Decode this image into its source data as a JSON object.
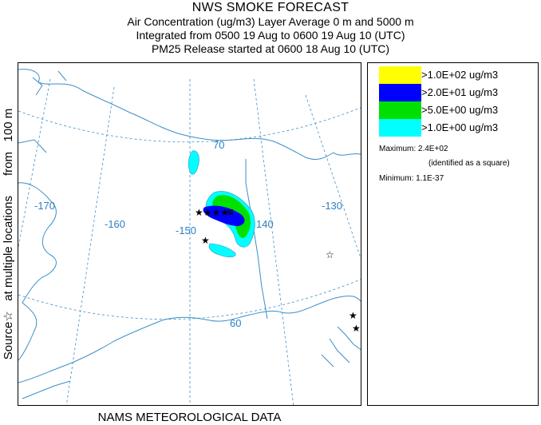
{
  "header": {
    "title": "NWS SMOKE FORECAST",
    "line1": "Air Concentration (ug/m3) Layer Average     0 m and  5000 m",
    "line2": "Integrated from 0500 19 Aug to 0600 19 Aug 10 (UTC)",
    "line3": "PM25 Release started at 0600 18 Aug 10 (UTC)"
  },
  "side_label": "Source☆   at multiple locations      from   100 m",
  "map": {
    "grid_labels": {
      "lat_70": "70",
      "lat_60": "60",
      "lon_m170": "-170",
      "lon_m160": "-160",
      "lon_m150": "-150",
      "lon_140": "140",
      "lon_m130": "-130"
    },
    "colors": {
      "coast": "#3a8fc8",
      "grid": "#3a8fc8",
      "level_1": "#ffff00",
      "level_2": "#0000ff",
      "level_3": "#00e000",
      "level_4": "#00ffff"
    },
    "source_marker": "star-icon",
    "max_marker": "square"
  },
  "legend": {
    "items": [
      {
        "label": ">1.0E+02 ug/m3",
        "color": "#ffff00"
      },
      {
        "label": ">2.0E+01 ug/m3",
        "color": "#0000ff"
      },
      {
        "label": ">5.0E+00 ug/m3",
        "color": "#00e000"
      },
      {
        "label": ">1.0E+00 ug/m3",
        "color": "#00ffff"
      }
    ],
    "maximum_label": "Maximum:",
    "maximum_value": "2.4E+02",
    "maximum_note": "(identified as a square)",
    "minimum_label": "Minimum:",
    "minimum_value": "1.1E-37"
  },
  "footer": "NAMS METEOROLOGICAL DATA"
}
